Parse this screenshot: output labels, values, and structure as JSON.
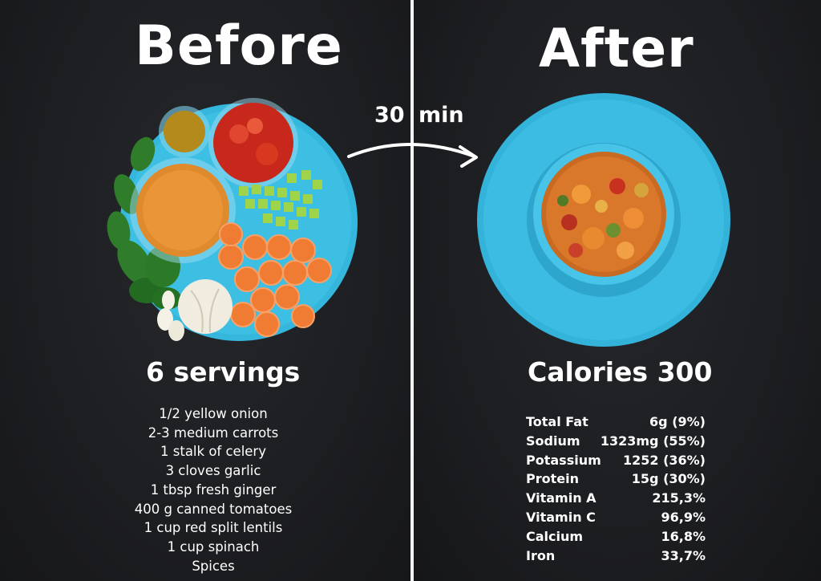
{
  "header": {
    "before_title": "Before",
    "after_title": "After"
  },
  "transition": {
    "time_value": "30",
    "time_unit": "min"
  },
  "before": {
    "servings": "6 servings",
    "ingredients": [
      "1/2 yellow onion",
      "2-3 medium carrots",
      "1 stalk of celery",
      "3 cloves garlic",
      "1 tbsp fresh ginger",
      "400 g canned tomatoes",
      "1 cup red split lentils",
      "1 cup spinach",
      "Spices"
    ]
  },
  "after": {
    "calories": "Calories 300",
    "nutrition": [
      {
        "label": "Total Fat",
        "value": "6g (9%)"
      },
      {
        "label": "Sodium",
        "value": "1323mg (55%)"
      },
      {
        "label": "Potassium",
        "value": "1252 (36%)"
      },
      {
        "label": "Protein",
        "value": "15g (30%)"
      },
      {
        "label": "Vitamin A",
        "value": "215,3%"
      },
      {
        "label": "Vitamin C",
        "value": "96,9%"
      },
      {
        "label": "Calcium",
        "value": "16,8%"
      },
      {
        "label": "Iron",
        "value": "33,7%"
      }
    ]
  },
  "colors": {
    "background": "#1b1c1f",
    "plate": "#36b7dd",
    "text": "#ffffff",
    "soup": "#d9772a"
  },
  "icons": {
    "arrow": "curved-arrow-icon"
  }
}
